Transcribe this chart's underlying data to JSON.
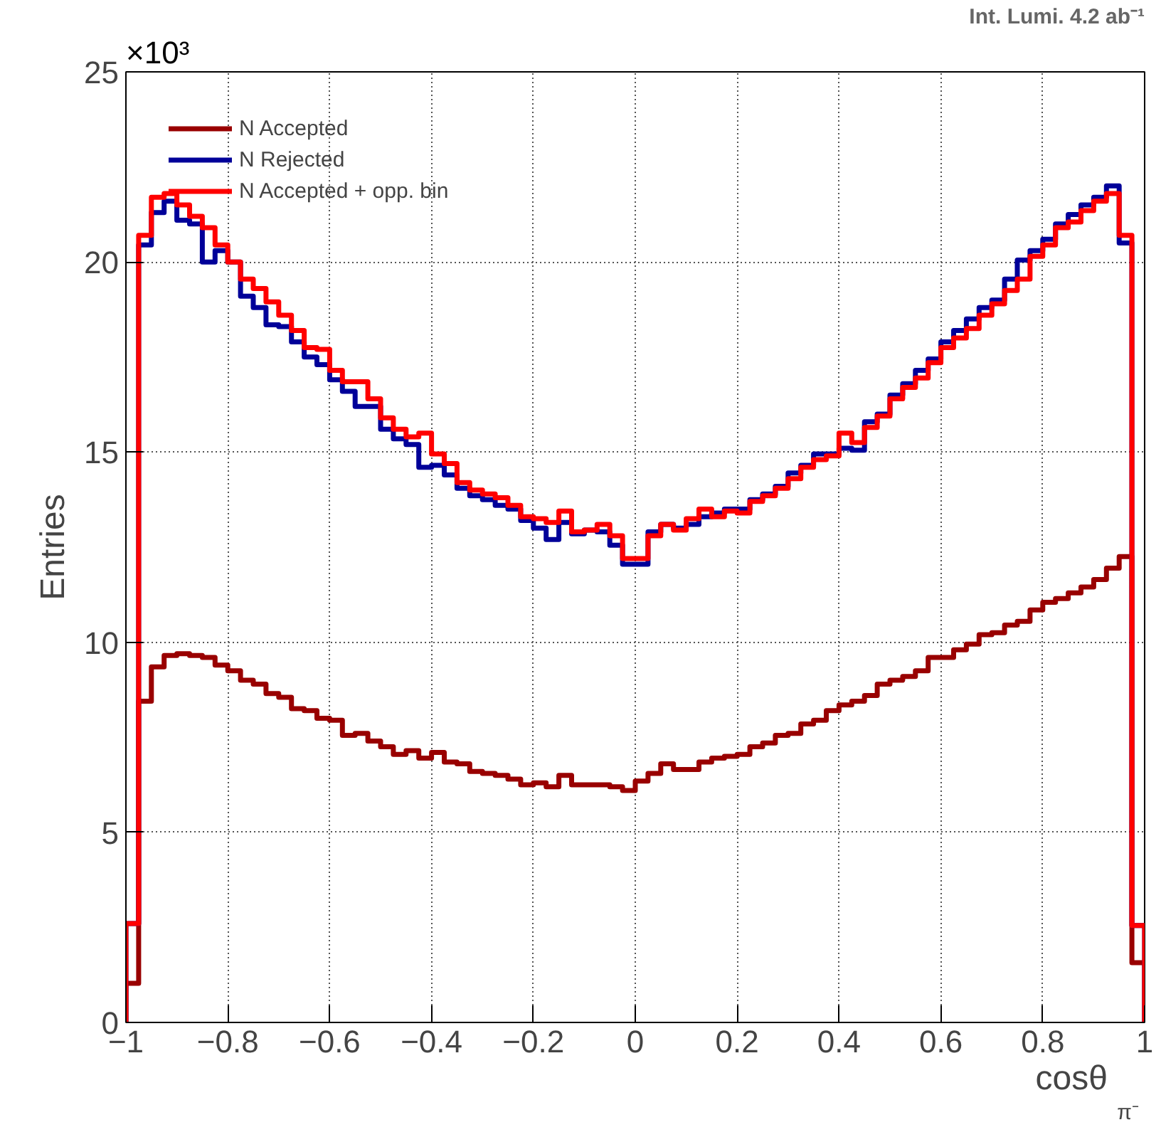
{
  "chart_data": {
    "type": "histogram",
    "xlabel": "cosθ$_{π⁻}$",
    "ylabel": "Entries",
    "annotations": [
      "×10³",
      "Int. Lumi. 4.2 ab⁻¹"
    ],
    "bins": [
      -1,
      -0.975,
      -0.95,
      -0.925,
      -0.9,
      -0.875,
      -0.85,
      -0.825,
      -0.8,
      -0.775,
      -0.75,
      -0.725,
      -0.7,
      -0.675,
      -0.65,
      -0.625,
      -0.6,
      -0.575,
      -0.55,
      -0.525,
      -0.5,
      -0.475,
      -0.45,
      -0.425,
      -0.4,
      -0.375,
      -0.35,
      -0.325,
      -0.3,
      -0.275,
      -0.25,
      -0.225,
      -0.2,
      -0.175,
      -0.15,
      -0.125,
      -0.1,
      -0.075,
      -0.05,
      -0.025,
      0,
      0.025,
      0.05,
      0.075,
      0.1,
      0.125,
      0.15,
      0.175,
      0.2,
      0.225,
      0.25,
      0.275,
      0.3,
      0.325,
      0.35,
      0.375,
      0.4,
      0.425,
      0.45,
      0.475,
      0.5,
      0.525,
      0.55,
      0.575,
      0.6,
      0.625,
      0.65,
      0.675,
      0.7,
      0.725,
      0.75,
      0.775,
      0.8,
      0.825,
      0.85,
      0.875,
      0.9,
      0.925,
      0.95,
      0.975,
      1
    ],
    "series": [
      {
        "name": "N Accepted",
        "color": "#990000",
        "values": [
          1.03,
          8.45,
          9.35,
          9.65,
          9.7,
          9.65,
          9.6,
          9.4,
          9.25,
          9.0,
          8.9,
          8.65,
          8.55,
          8.25,
          8.2,
          8.0,
          7.95,
          7.55,
          7.6,
          7.4,
          7.25,
          7.05,
          7.15,
          6.95,
          7.1,
          6.85,
          6.8,
          6.6,
          6.55,
          6.5,
          6.4,
          6.25,
          6.3,
          6.2,
          6.5,
          6.25,
          6.25,
          6.25,
          6.2,
          6.1,
          6.35,
          6.55,
          6.8,
          6.65,
          6.65,
          6.85,
          6.95,
          7.0,
          7.05,
          7.25,
          7.35,
          7.55,
          7.6,
          7.85,
          7.95,
          8.2,
          8.35,
          8.45,
          8.6,
          8.9,
          9.0,
          9.1,
          9.25,
          9.6,
          9.6,
          9.8,
          9.95,
          10.2,
          10.25,
          10.45,
          10.55,
          10.85,
          11.05,
          11.15,
          11.3,
          11.45,
          11.65,
          11.95,
          12.25,
          1.57
        ]
      },
      {
        "name": "N Rejected",
        "color": "#000099",
        "values": [
          2.6,
          20.45,
          21.3,
          21.6,
          21.1,
          21.0,
          20.0,
          20.3,
          20.0,
          19.1,
          18.8,
          18.35,
          18.3,
          17.9,
          17.5,
          17.3,
          16.9,
          16.6,
          16.2,
          16.2,
          15.6,
          15.35,
          15.2,
          14.6,
          14.65,
          14.4,
          14.05,
          13.85,
          13.75,
          13.6,
          13.5,
          13.2,
          13.0,
          12.7,
          13.15,
          12.85,
          12.95,
          12.9,
          12.55,
          12.05,
          12.05,
          12.9,
          13.1,
          13.0,
          13.1,
          13.3,
          13.4,
          13.5,
          13.5,
          13.75,
          13.9,
          14.1,
          14.45,
          14.65,
          14.95,
          14.95,
          15.1,
          15.05,
          15.8,
          16.0,
          16.5,
          16.8,
          17.15,
          17.45,
          17.9,
          18.2,
          18.5,
          18.8,
          19.0,
          19.55,
          20.05,
          20.3,
          20.6,
          21.0,
          21.25,
          21.5,
          21.7,
          22.0,
          20.5,
          2.55
        ]
      },
      {
        "name": "N Accepted + opp. bin",
        "color": "#ff0000",
        "values": [
          2.6,
          20.7,
          21.7,
          21.8,
          21.5,
          21.2,
          20.9,
          20.45,
          20.0,
          19.55,
          19.3,
          18.95,
          18.6,
          18.2,
          17.75,
          17.7,
          17.15,
          16.85,
          16.85,
          16.4,
          15.9,
          15.6,
          15.4,
          15.5,
          14.95,
          14.7,
          14.2,
          14.0,
          13.9,
          13.8,
          13.6,
          13.3,
          13.25,
          13.15,
          13.45,
          12.9,
          12.95,
          13.1,
          12.8,
          12.2,
          12.2,
          12.8,
          13.1,
          12.95,
          13.25,
          13.5,
          13.3,
          13.45,
          13.4,
          13.7,
          13.85,
          14.05,
          14.3,
          14.6,
          14.8,
          14.9,
          15.5,
          15.25,
          15.65,
          15.95,
          16.4,
          16.7,
          16.95,
          17.35,
          17.75,
          18.0,
          18.25,
          18.6,
          18.9,
          19.25,
          19.55,
          20.15,
          20.45,
          20.9,
          21.05,
          21.35,
          21.6,
          21.8,
          20.7,
          2.55
        ]
      }
    ],
    "xlim": [
      -1,
      1
    ],
    "ylim": [
      0,
      25
    ],
    "xticks": [
      {
        "value": -1,
        "label": "−1"
      },
      {
        "value": -0.8,
        "label": "−0.8"
      },
      {
        "value": -0.6,
        "label": "−0.6"
      },
      {
        "value": -0.4,
        "label": "−0.4"
      },
      {
        "value": -0.2,
        "label": "−0.2"
      },
      0,
      0.2,
      0.4,
      0.6,
      0.8,
      1
    ],
    "yticks": [
      0,
      5,
      10,
      15,
      20,
      25
    ],
    "grid": true,
    "legend": "top left",
    "line_style": "solid"
  }
}
